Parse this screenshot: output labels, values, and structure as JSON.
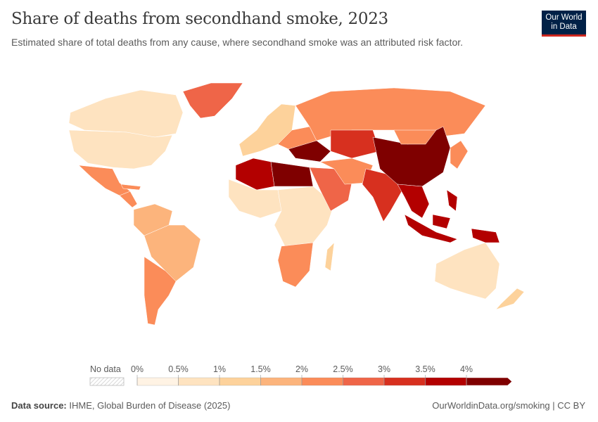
{
  "header": {
    "title": "Share of deaths from secondhand smoke, 2023",
    "subtitle": "Estimated share of total deaths from any cause, where secondhand smoke was an attributed risk factor.",
    "logo_line1": "Our World",
    "logo_line2": "in Data"
  },
  "chart_data": {
    "type": "choropleth",
    "title": "Share of deaths from secondhand smoke, 2023",
    "legend": {
      "no_data_label": "No data",
      "ticks": [
        "0%",
        "0.5%",
        "1%",
        "1.5%",
        "2%",
        "2.5%",
        "3%",
        "3.5%",
        "4%"
      ],
      "bins": [
        {
          "min": 0,
          "max": 0.5,
          "color": "#fff3e4"
        },
        {
          "min": 0.5,
          "max": 1,
          "color": "#fee3c0"
        },
        {
          "min": 1,
          "max": 1.5,
          "color": "#fdd29b"
        },
        {
          "min": 1.5,
          "max": 2,
          "color": "#fcb47c"
        },
        {
          "min": 2,
          "max": 2.5,
          "color": "#fb8c59"
        },
        {
          "min": 2.5,
          "max": 3,
          "color": "#ef6548"
        },
        {
          "min": 3,
          "max": 3.5,
          "color": "#d7301f"
        },
        {
          "min": 3.5,
          "max": 4,
          "color": "#b30000"
        },
        {
          "min": 4,
          "max": null,
          "color": "#7f0000"
        }
      ]
    },
    "regions": [
      {
        "name": "Canada",
        "value": 0.8
      },
      {
        "name": "United States",
        "value": 0.9
      },
      {
        "name": "Greenland",
        "value": 2.6
      },
      {
        "name": "Mexico",
        "value": 2.3
      },
      {
        "name": "Central America & Caribbean",
        "value": 2.0
      },
      {
        "name": "Northern South America",
        "value": 1.6
      },
      {
        "name": "Brazil",
        "value": 1.6
      },
      {
        "name": "Argentina & Chile",
        "value": 2.2
      },
      {
        "name": "Western Europe",
        "value": 1.4
      },
      {
        "name": "Eastern Europe",
        "value": 2.4
      },
      {
        "name": "Russia",
        "value": 2.2
      },
      {
        "name": "North Africa",
        "value": 3.8
      },
      {
        "name": "Egypt & Libya",
        "value": 4.2
      },
      {
        "name": "West Africa",
        "value": 0.8
      },
      {
        "name": "Central & East Africa",
        "value": 0.6
      },
      {
        "name": "Southern Africa",
        "value": 2.2
      },
      {
        "name": "Madagascar",
        "value": 1.2
      },
      {
        "name": "Middle East",
        "value": 2.6
      },
      {
        "name": "Turkey & Caucasus",
        "value": 4.1
      },
      {
        "name": "Central Asia",
        "value": 3.2
      },
      {
        "name": "Iran & Afghanistan",
        "value": 2.2
      },
      {
        "name": "South Asia",
        "value": 3.1
      },
      {
        "name": "China",
        "value": 4.3
      },
      {
        "name": "Mongolia",
        "value": 2.4
      },
      {
        "name": "Korea & Japan",
        "value": 2.3
      },
      {
        "name": "Southeast Asia",
        "value": 3.8
      },
      {
        "name": "Indonesia",
        "value": 3.7
      },
      {
        "name": "Papua New Guinea",
        "value": 3.6
      },
      {
        "name": "Australia",
        "value": 0.5
      },
      {
        "name": "New Zealand",
        "value": 1.2
      }
    ]
  },
  "footer": {
    "source_label": "Data source:",
    "source": "IHME, Global Burden of Disease (2025)",
    "url": "OurWorldinData.org/smoking | CC BY"
  }
}
